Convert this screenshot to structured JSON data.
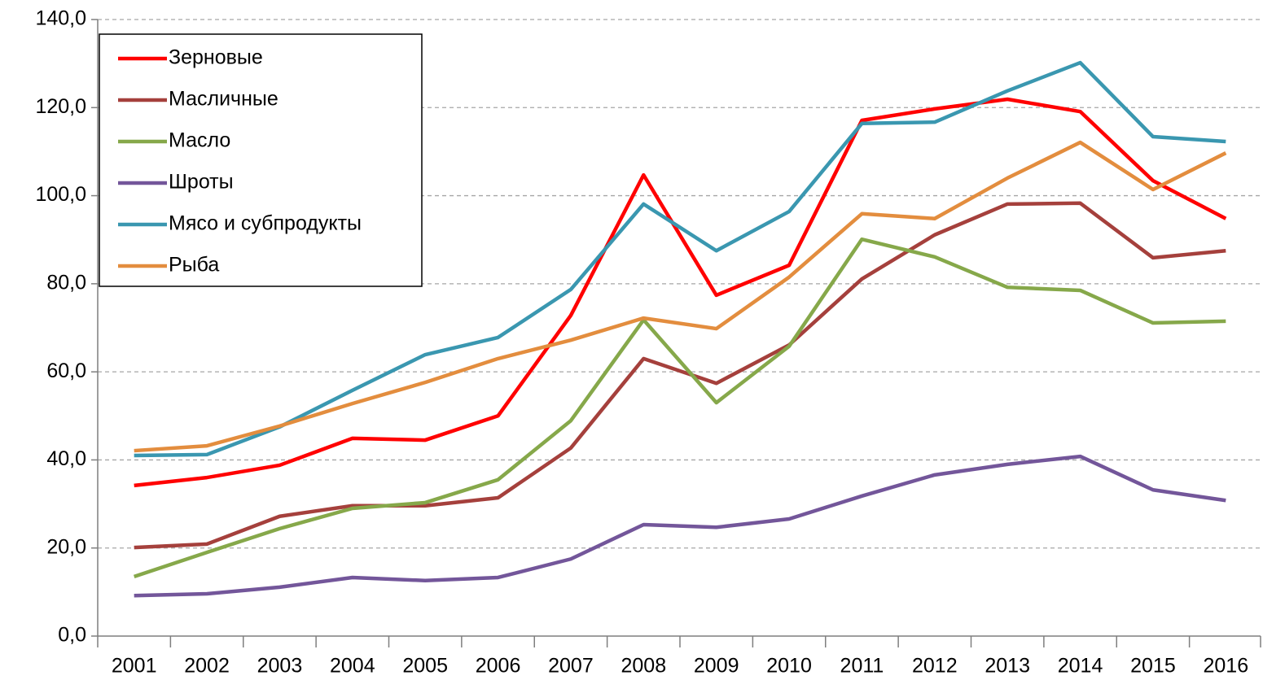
{
  "chart_data": {
    "type": "line",
    "categories": [
      "2001",
      "2002",
      "2003",
      "2004",
      "2005",
      "2006",
      "2007",
      "2008",
      "2009",
      "2010",
      "2011",
      "2012",
      "2013",
      "2014",
      "2015",
      "2016"
    ],
    "series": [
      {
        "name": "Зерновые",
        "color": "#ff0000",
        "values": [
          34.2,
          36.0,
          38.8,
          44.9,
          44.5,
          50.0,
          72.8,
          104.7,
          77.4,
          84.2,
          117.1,
          119.7,
          121.9,
          119.1,
          103.4,
          94.8
        ]
      },
      {
        "name": "Масличные",
        "color": "#a5403c",
        "values": [
          20.1,
          20.9,
          27.2,
          29.6,
          29.6,
          31.4,
          42.7,
          63.0,
          57.4,
          66.1,
          81.1,
          91.1,
          98.1,
          98.3,
          85.9,
          87.5
        ]
      },
      {
        "name": "Масло",
        "color": "#86a84a",
        "values": [
          13.5,
          19.0,
          24.4,
          29.0,
          30.3,
          35.5,
          48.9,
          71.8,
          53.0,
          65.8,
          90.1,
          86.1,
          79.2,
          78.5,
          71.1,
          71.5
        ]
      },
      {
        "name": "Шроты",
        "color": "#73569a",
        "values": [
          9.2,
          9.6,
          11.1,
          13.3,
          12.6,
          13.3,
          17.5,
          25.3,
          24.7,
          26.6,
          31.8,
          36.6,
          39.0,
          40.8,
          33.2,
          30.8
        ]
      },
      {
        "name": "Мясо и субпродукты",
        "color": "#3a97b0",
        "values": [
          41.0,
          41.2,
          47.5,
          55.8,
          63.9,
          67.8,
          78.7,
          98.1,
          87.5,
          96.4,
          116.4,
          116.7,
          123.8,
          130.2,
          113.4,
          112.3
        ]
      },
      {
        "name": "Рыба",
        "color": "#e38d3e",
        "values": [
          42.1,
          43.2,
          47.7,
          52.8,
          57.6,
          63.0,
          67.2,
          72.2,
          69.8,
          81.5,
          95.9,
          94.8,
          104.0,
          112.1,
          101.4,
          109.7
        ]
      }
    ],
    "ylim": [
      0,
      140
    ],
    "yticks": [
      {
        "value": 0,
        "label": "0,0"
      },
      {
        "value": 20,
        "label": "20,0"
      },
      {
        "value": 40,
        "label": "40,0"
      },
      {
        "value": 60,
        "label": "60,0"
      },
      {
        "value": 80,
        "label": "80,0"
      },
      {
        "value": 100,
        "label": "100,0"
      },
      {
        "value": 120,
        "label": "120,0"
      },
      {
        "value": 140,
        "label": "140,0"
      }
    ],
    "grid": true,
    "legend": "upper left"
  }
}
